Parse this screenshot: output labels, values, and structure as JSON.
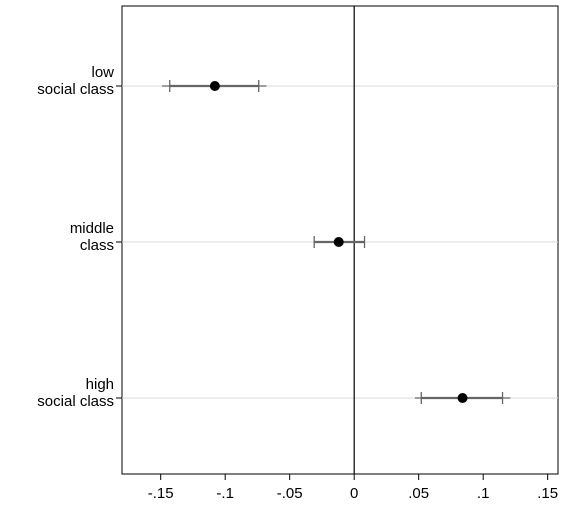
{
  "chart_data": {
    "type": "scatter",
    "subtype": "coefficient-plot-horizontal",
    "categories": [
      [
        "low",
        "social class"
      ],
      [
        "middle",
        "class"
      ],
      [
        "high",
        "social class"
      ]
    ],
    "points": [
      {
        "estimate": -0.108,
        "ci_inner": [
          -0.143,
          -0.074
        ],
        "ci_outer": [
          -0.149,
          -0.068
        ]
      },
      {
        "estimate": -0.012,
        "ci_inner": [
          -0.031,
          0.008
        ],
        "ci_outer": [
          -0.031,
          0.008
        ]
      },
      {
        "estimate": 0.084,
        "ci_inner": [
          0.052,
          0.115
        ],
        "ci_outer": [
          0.047,
          0.121
        ]
      }
    ],
    "x_ticks": [
      -0.15,
      -0.1,
      -0.05,
      0,
      0.05,
      0.1,
      0.15
    ],
    "x_tick_labels": [
      "-.15",
      "-.1",
      "-.05",
      "0",
      ".05",
      ".1",
      ".15"
    ],
    "xlim": [
      -0.18,
      0.158
    ],
    "reference_line_x": 0,
    "grid": "horizontal",
    "legend": "none",
    "colors": {
      "marker": "#000000",
      "ci": "#666666",
      "grid": "#d9d9d9",
      "axis": "#000000"
    }
  }
}
